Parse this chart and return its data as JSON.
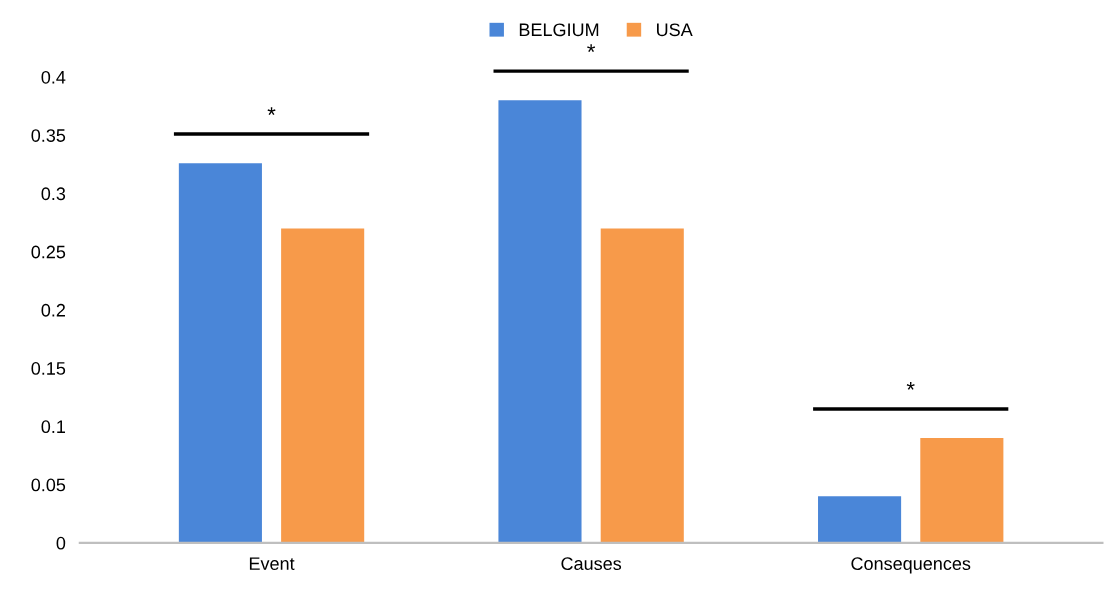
{
  "chart_data": {
    "type": "bar",
    "categories": [
      "Event",
      "Causes",
      "Consequences"
    ],
    "series": [
      {
        "name": "BELGIUM",
        "color": "#4a86d8",
        "values": [
          0.326,
          0.38,
          0.04
        ]
      },
      {
        "name": "USA",
        "color": "#f79a4a",
        "values": [
          0.27,
          0.27,
          0.09
        ]
      }
    ],
    "ylim": [
      0,
      0.4
    ],
    "yticks": [
      0,
      0.05,
      0.1,
      0.15,
      0.2,
      0.25,
      0.3,
      0.35,
      0.4
    ],
    "grid": false,
    "legend": "top",
    "annotations": [
      "*",
      "*",
      "*"
    ]
  }
}
